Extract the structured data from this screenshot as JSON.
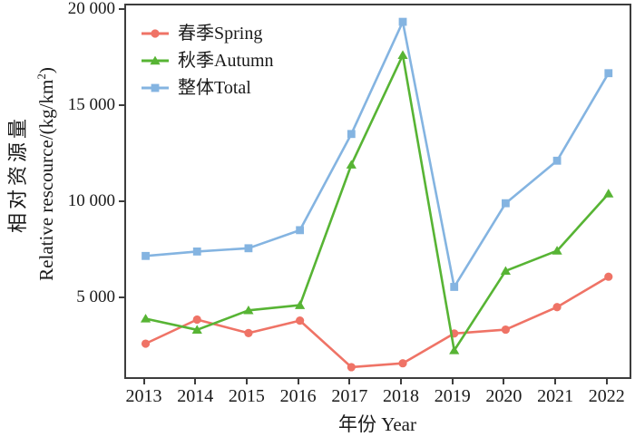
{
  "figure": {
    "background": "#ffffff",
    "frame_color": "#3d3d3d",
    "text_color": "#1a1a1a"
  },
  "chart_data": {
    "type": "line",
    "title": "",
    "xlabel": "年份 Year",
    "ylabel_zh": "相对资源量",
    "ylabel_en_main": "Relative rescource/(kg/km",
    "ylabel_en_sup": "2",
    "ylabel_en_close": ")",
    "categories": [
      "2013",
      "2014",
      "2015",
      "2016",
      "2017",
      "2018",
      "2019",
      "2020",
      "2021",
      "2022"
    ],
    "x": [
      2013,
      2014,
      2015,
      2016,
      2017,
      2018,
      2019,
      2020,
      2021,
      2022
    ],
    "y_ticks": [
      5000,
      10000,
      15000,
      20000
    ],
    "y_tick_labels": [
      "5 000",
      "10 000",
      "15 000",
      "20 000"
    ],
    "xlim": [
      2012.62,
      2022.48
    ],
    "ylim": [
      770,
      20282
    ],
    "grid": false,
    "legend_position": "top-left-inside",
    "series": [
      {
        "name": "春季Spring",
        "color": "#EF7366",
        "marker": "circle",
        "values": [
          2700,
          3950,
          3250,
          3900,
          1480,
          1680,
          3230,
          3430,
          4600,
          6180
        ]
      },
      {
        "name": "秋季Autumn",
        "color": "#57B434",
        "marker": "triangle",
        "values": [
          4000,
          3420,
          4430,
          4700,
          12000,
          17700,
          2350,
          6480,
          7530,
          10500
        ]
      },
      {
        "name": "整体Total",
        "color": "#84B4E1",
        "marker": "square",
        "values": [
          7260,
          7490,
          7660,
          8600,
          13600,
          19430,
          5650,
          10000,
          12210,
          16760
        ]
      }
    ]
  }
}
